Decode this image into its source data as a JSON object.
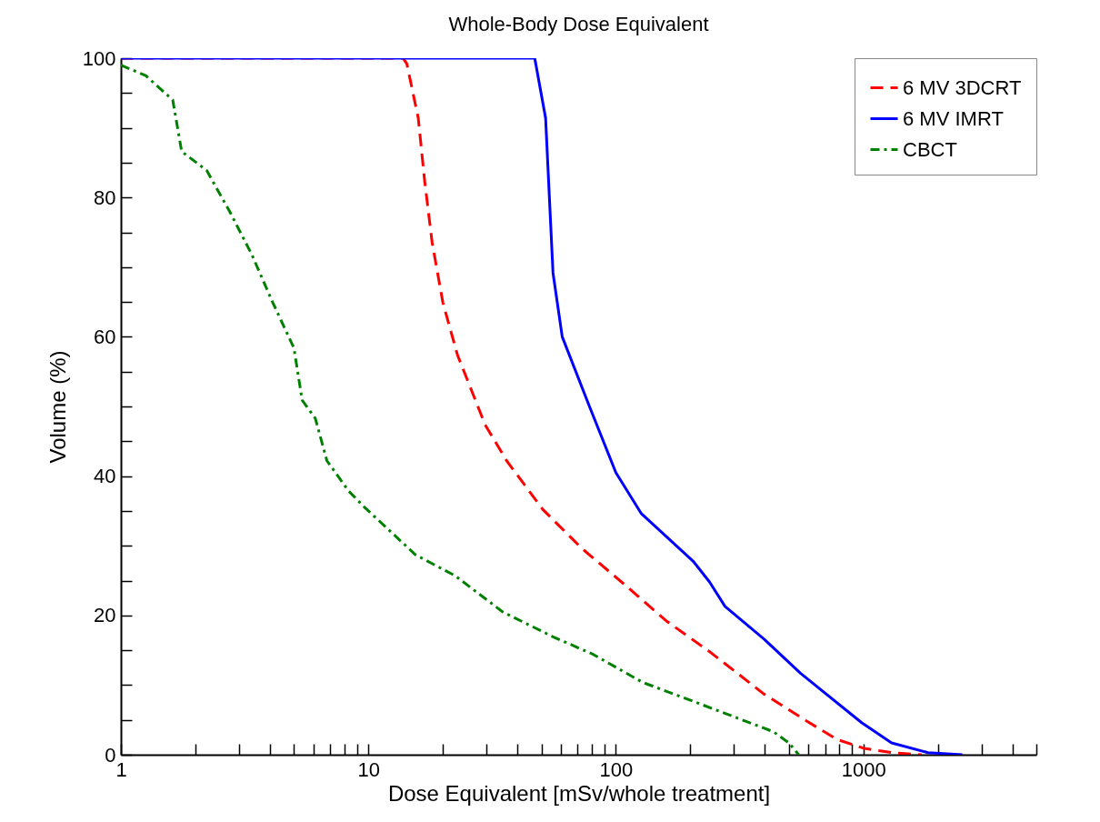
{
  "chart_data": {
    "type": "line",
    "title": "Whole-Body Dose Equivalent",
    "xlabel": "Dose Equivalent [mSv/whole treatment]",
    "ylabel": "Volume (%)",
    "log": "x",
    "legend": "top right",
    "xlim": [
      1,
      5000
    ],
    "ylim": [
      0,
      100
    ],
    "xticks": [
      1,
      {
        "value": 2,
        "label": null
      },
      {
        "value": 3,
        "label": null
      },
      {
        "value": 4,
        "label": null
      },
      {
        "value": 5,
        "label": null
      },
      {
        "value": 6,
        "label": null
      },
      {
        "value": 7,
        "label": null
      },
      {
        "value": 8,
        "label": null
      },
      {
        "value": 9,
        "label": null
      },
      10,
      {
        "value": 20,
        "label": null
      },
      {
        "value": 30,
        "label": null
      },
      {
        "value": 40,
        "label": null
      },
      {
        "value": 50,
        "label": null
      },
      {
        "value": 60,
        "label": null
      },
      {
        "value": 70,
        "label": null
      },
      {
        "value": 80,
        "label": null
      },
      {
        "value": 90,
        "label": null
      },
      100,
      {
        "value": 200,
        "label": null
      },
      {
        "value": 300,
        "label": null
      },
      {
        "value": 400,
        "label": null
      },
      {
        "value": 500,
        "label": null
      },
      {
        "value": 600,
        "label": null
      },
      {
        "value": 700,
        "label": null
      },
      {
        "value": 800,
        "label": null
      },
      {
        "value": 900,
        "label": null
      },
      1000,
      {
        "value": 2000,
        "label": null
      },
      {
        "value": 3000,
        "label": null
      },
      {
        "value": 4000,
        "label": null
      },
      {
        "value": 5000,
        "label": null
      }
    ],
    "yticks": [
      0,
      {
        "value": 5,
        "label": null
      },
      {
        "value": 10,
        "label": null
      },
      {
        "value": 15,
        "label": null
      },
      20,
      {
        "value": 25,
        "label": null
      },
      {
        "value": 30,
        "label": null
      },
      {
        "value": 35,
        "label": null
      },
      40,
      {
        "value": 45,
        "label": null
      },
      {
        "value": 50,
        "label": null
      },
      {
        "value": 55,
        "label": null
      },
      60,
      {
        "value": 65,
        "label": null
      },
      {
        "value": 70,
        "label": null
      },
      {
        "value": 75,
        "label": null
      },
      80,
      {
        "value": 85,
        "label": null
      },
      {
        "value": 90,
        "label": null
      },
      {
        "value": 95,
        "label": null
      },
      100
    ],
    "series": [
      {
        "name": "6 MV 3DCRT",
        "color": "#ff0000",
        "line_style": "dashed",
        "x": [
          1,
          13.8,
          14.3,
          15.9,
          16.9,
          18.1,
          20,
          22.9,
          29.6,
          36.2,
          50.7,
          73,
          108.6,
          160,
          239,
          397,
          592,
          782,
          1009,
          1300,
          1719
        ],
        "values": [
          100,
          100,
          99.2,
          91.4,
          82.2,
          73.5,
          64.9,
          57.4,
          47.4,
          42.2,
          35.2,
          29.6,
          24.4,
          19.2,
          14.8,
          8.7,
          4.8,
          2.2,
          0.9,
          0.3,
          0
        ]
      },
      {
        "name": "6 MV IMRT",
        "color": "#0000ff",
        "line_style": "solid",
        "x": [
          1,
          47,
          52,
          55.7,
          60.7,
          78.2,
          100,
          126.8,
          205,
          239,
          276,
          397,
          557,
          984,
          1300,
          1824,
          2510
        ],
        "values": [
          100,
          100,
          91.4,
          69.2,
          60,
          50,
          40.5,
          34.6,
          27.8,
          24.8,
          21.3,
          16.6,
          11.7,
          4.6,
          1.7,
          0.3,
          0
        ]
      },
      {
        "name": "CBCT",
        "color": "#008000",
        "line_style": "dotted",
        "x": [
          1,
          1.26,
          1.62,
          1.76,
          2.22,
          2.76,
          3.38,
          4.11,
          5,
          5.4,
          6.1,
          6.8,
          8.3,
          9.6,
          15.5,
          22.4,
          34.9,
          55.2,
          81,
          128,
          215,
          433,
          500,
          548
        ],
        "values": [
          99,
          97.5,
          94,
          86.6,
          83.9,
          77.9,
          71.8,
          64.9,
          58.4,
          50.9,
          48.3,
          42.2,
          37.9,
          35.6,
          28.7,
          25.7,
          20.5,
          17,
          14.4,
          10.4,
          7.4,
          3.3,
          1.7,
          0
        ]
      }
    ]
  }
}
